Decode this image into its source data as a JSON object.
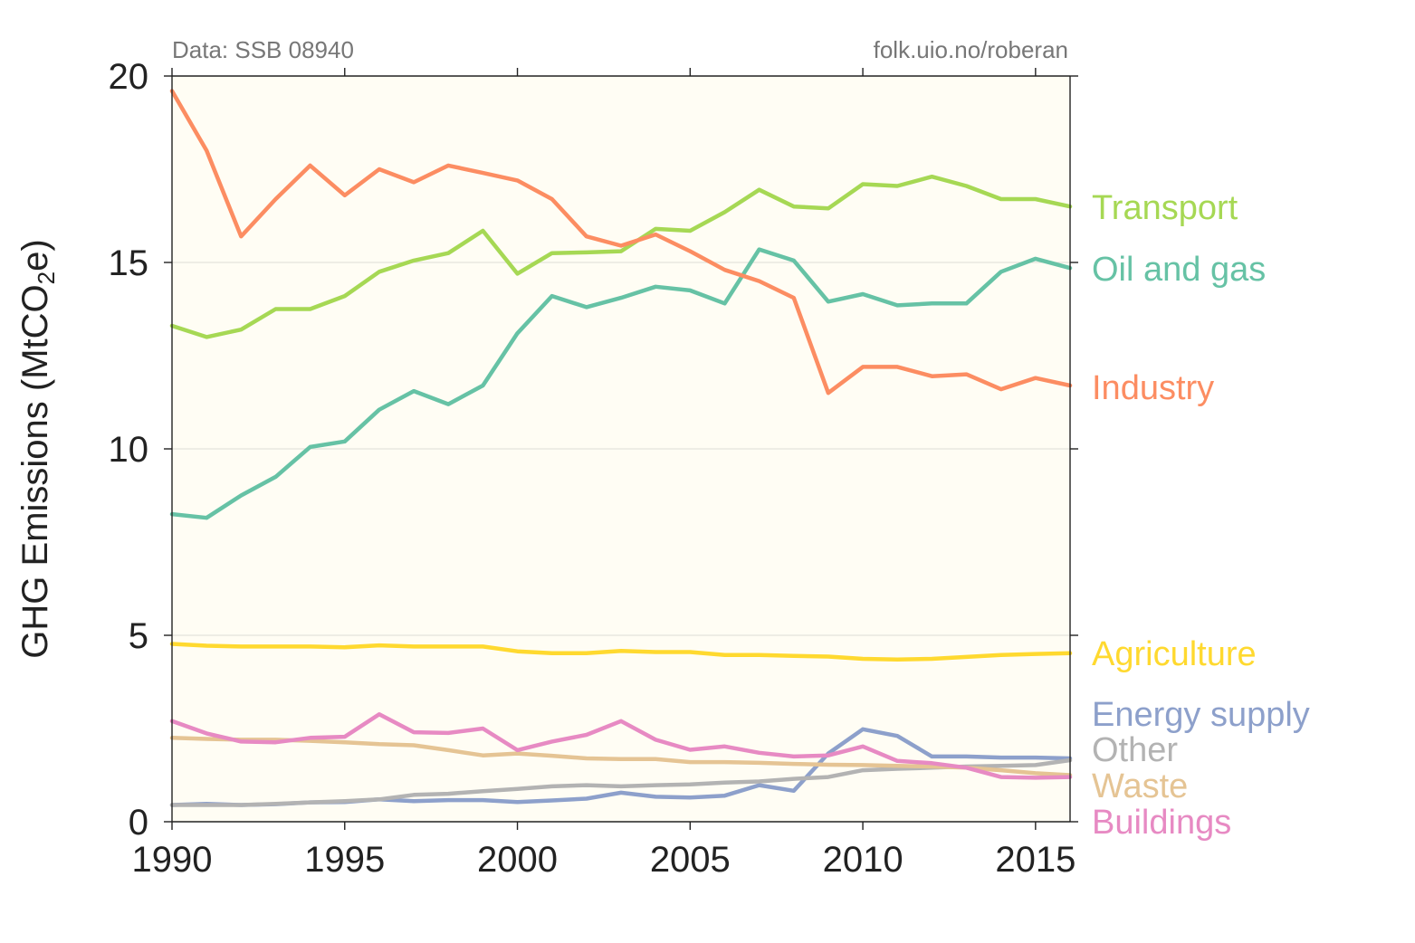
{
  "notes": {
    "source": "Data: SSB 08940",
    "credit": "folk.uio.no/roberan"
  },
  "chart_data": {
    "type": "line",
    "ylabel_main": "GHG Emissions (MtCO",
    "ylabel_sub": "2",
    "ylabel_end": "e)",
    "xlim": [
      1990,
      2016
    ],
    "ylim": [
      0,
      20
    ],
    "xticks": [
      1990,
      1995,
      2000,
      2005,
      2010,
      2015
    ],
    "yticks": [
      0,
      5,
      10,
      15,
      20
    ],
    "grid": "horizontal",
    "plot_background": "#fffdf4",
    "x": [
      1990,
      1991,
      1992,
      1993,
      1994,
      1995,
      1996,
      1997,
      1998,
      1999,
      2000,
      2001,
      2002,
      2003,
      2004,
      2005,
      2006,
      2007,
      2008,
      2009,
      2010,
      2011,
      2012,
      2013,
      2014,
      2015,
      2016
    ],
    "series": [
      {
        "name": "Transport",
        "color": "#a6d854",
        "values": [
          13.3,
          13.0,
          13.2,
          13.75,
          13.75,
          14.1,
          14.75,
          15.05,
          15.25,
          15.85,
          14.7,
          15.25,
          15.27,
          15.3,
          15.9,
          15.85,
          16.35,
          16.95,
          16.5,
          16.45,
          17.1,
          17.05,
          17.3,
          17.05,
          16.7,
          16.7,
          16.5
        ]
      },
      {
        "name": "Oil and gas",
        "color": "#66c2a5",
        "values": [
          8.25,
          8.15,
          8.75,
          9.25,
          10.05,
          10.2,
          11.05,
          11.55,
          11.2,
          11.7,
          13.1,
          14.1,
          13.8,
          14.05,
          14.35,
          14.25,
          13.9,
          15.35,
          15.05,
          13.95,
          14.15,
          13.85,
          13.9,
          13.9,
          14.75,
          15.1,
          14.85
        ]
      },
      {
        "name": "Industry",
        "color": "#fc8d62",
        "values": [
          19.6,
          18.0,
          15.7,
          16.7,
          17.6,
          16.8,
          17.5,
          17.15,
          17.6,
          17.4,
          17.2,
          16.7,
          15.7,
          15.45,
          15.75,
          15.3,
          14.8,
          14.5,
          14.05,
          11.5,
          12.2,
          12.2,
          11.95,
          12.0,
          11.6,
          11.9,
          11.7
        ]
      },
      {
        "name": "Agriculture",
        "color": "#ffd92f",
        "values": [
          4.77,
          4.72,
          4.7,
          4.7,
          4.7,
          4.68,
          4.73,
          4.7,
          4.7,
          4.7,
          4.57,
          4.52,
          4.52,
          4.58,
          4.55,
          4.55,
          4.47,
          4.47,
          4.45,
          4.43,
          4.37,
          4.35,
          4.37,
          4.42,
          4.47,
          4.5,
          4.52
        ]
      },
      {
        "name": "Energy supply",
        "color": "#8da0cb",
        "values": [
          0.45,
          0.48,
          0.45,
          0.47,
          0.52,
          0.53,
          0.6,
          0.55,
          0.58,
          0.58,
          0.53,
          0.57,
          0.62,
          0.78,
          0.67,
          0.65,
          0.7,
          0.98,
          0.83,
          1.83,
          2.48,
          2.3,
          1.75,
          1.75,
          1.72,
          1.72,
          1.7
        ]
      },
      {
        "name": "Other",
        "color": "#b3b3b3",
        "values": [
          0.45,
          0.45,
          0.45,
          0.48,
          0.52,
          0.55,
          0.6,
          0.72,
          0.75,
          0.82,
          0.88,
          0.95,
          0.98,
          0.95,
          0.98,
          1.0,
          1.05,
          1.08,
          1.15,
          1.2,
          1.38,
          1.42,
          1.45,
          1.48,
          1.5,
          1.52,
          1.65
        ]
      },
      {
        "name": "Waste",
        "color": "#e5c494",
        "values": [
          2.25,
          2.22,
          2.2,
          2.2,
          2.17,
          2.13,
          2.08,
          2.05,
          1.92,
          1.78,
          1.83,
          1.77,
          1.7,
          1.68,
          1.68,
          1.6,
          1.6,
          1.58,
          1.55,
          1.53,
          1.52,
          1.5,
          1.48,
          1.45,
          1.38,
          1.3,
          1.25
        ]
      },
      {
        "name": "Buildings",
        "color": "#e78ac3",
        "values": [
          2.7,
          2.37,
          2.15,
          2.13,
          2.25,
          2.28,
          2.88,
          2.4,
          2.38,
          2.5,
          1.92,
          2.15,
          2.33,
          2.7,
          2.2,
          1.93,
          2.02,
          1.85,
          1.75,
          1.78,
          2.02,
          1.63,
          1.57,
          1.45,
          1.2,
          1.18,
          1.2
        ]
      }
    ]
  }
}
